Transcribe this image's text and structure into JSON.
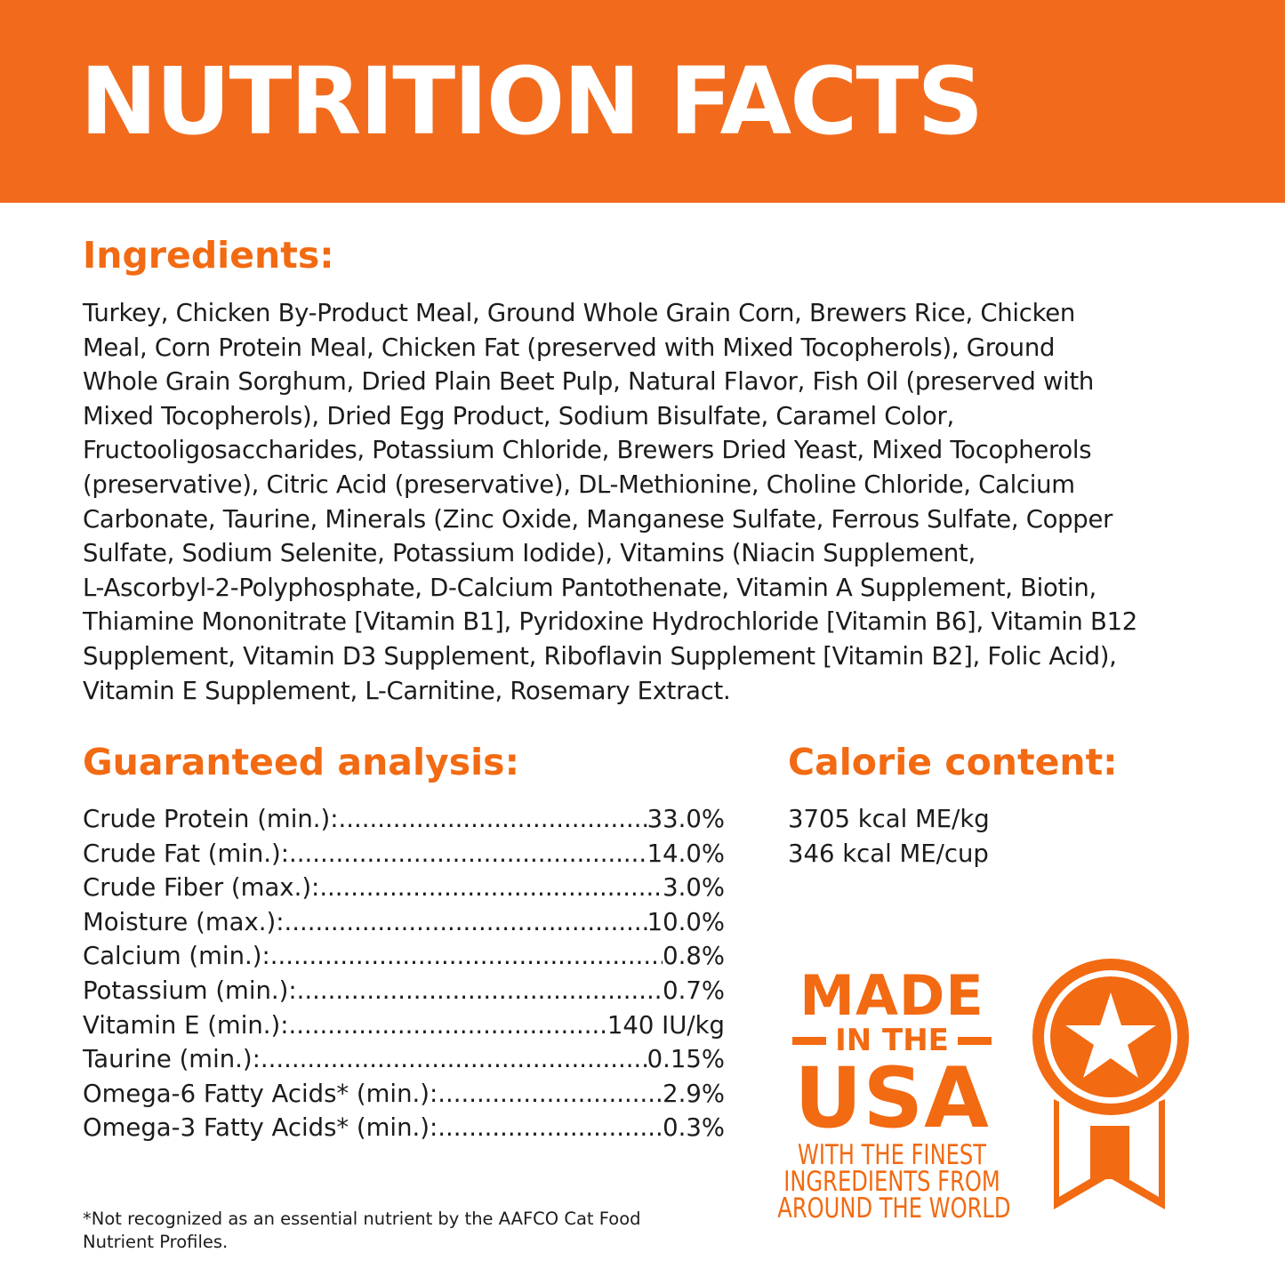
{
  "header": {
    "title": "NUTRITION FACTS"
  },
  "ingredients": {
    "heading": "Ingredients:",
    "lines": [
      "Turkey, Chicken By-Product Meal, Ground Whole Grain Corn, Brewers Rice, Chicken",
      "Meal, Corn Protein Meal, Chicken Fat (preserved with Mixed Tocopherols), Ground",
      "Whole Grain Sorghum, Dried Plain Beet Pulp, Natural Flavor, Fish Oil (preserved with",
      "Mixed Tocopherols), Dried Egg Product, Sodium Bisulfate, Caramel Color,",
      "Fructooligosaccharides, Potassium Chloride, Brewers Dried Yeast, Mixed Tocopherols",
      "(preservative), Citric Acid (preservative), DL-Methionine, Choline Chloride, Calcium",
      "Carbonate, Taurine, Minerals (Zinc Oxide, Manganese Sulfate, Ferrous Sulfate, Copper",
      "Sulfate, Sodium Selenite, Potassium Iodide), Vitamins (Niacin Supplement,",
      "L-Ascorbyl-2-Polyphosphate, D-Calcium Pantothenate, Vitamin A Supplement, Biotin,",
      "Thiamine Mononitrate [Vitamin B1], Pyridoxine Hydrochloride [Vitamin B6], Vitamin B12",
      "Supplement, Vitamin D3 Supplement, Riboflavin Supplement [Vitamin B2], Folic Acid),",
      "Vitamin E Supplement, L-Carnitine, Rosemary Extract."
    ]
  },
  "analysis": {
    "heading": "Guaranteed analysis:",
    "rows": [
      {
        "label": "Crude Protein (min.):",
        "value": "33.0%"
      },
      {
        "label": "Crude Fat (min.):",
        "value": "14.0%"
      },
      {
        "label": "Crude Fiber (max.):",
        "value": "3.0%"
      },
      {
        "label": "Moisture (max.):",
        "value": "10.0%"
      },
      {
        "label": "Calcium (min.):",
        "value": "0.8%"
      },
      {
        "label": "Potassium (min.):",
        "value": "0.7%"
      },
      {
        "label": "Vitamin E (min.):",
        "value": "140 IU/kg"
      },
      {
        "label": "Taurine (min.):",
        "value": "0.15%"
      },
      {
        "label": "Omega-6 Fatty Acids* (min.):",
        "value": "2.9%"
      },
      {
        "label": "Omega-3 Fatty Acids* (min.):",
        "value": "0.3%"
      }
    ]
  },
  "calorie": {
    "heading": "Calorie content:",
    "lines": [
      "3705 kcal ME/kg",
      "346 kcal ME/cup"
    ]
  },
  "footnote": {
    "lines": [
      "*Not recognized as an essential nutrient by the AAFCO Cat Food",
      "Nutrient Profiles."
    ]
  },
  "badge": {
    "made": "MADE",
    "in_the": "IN THE",
    "usa": "USA",
    "tagline": [
      "WITH THE FINEST",
      "INGREDIENTS FROM",
      "AROUND THE WORLD"
    ],
    "icon": "star-ribbon-medal-icon"
  },
  "colors": {
    "brand_orange": "#F26B1D",
    "text": "#1c1c1c",
    "background": "#ffffff"
  }
}
